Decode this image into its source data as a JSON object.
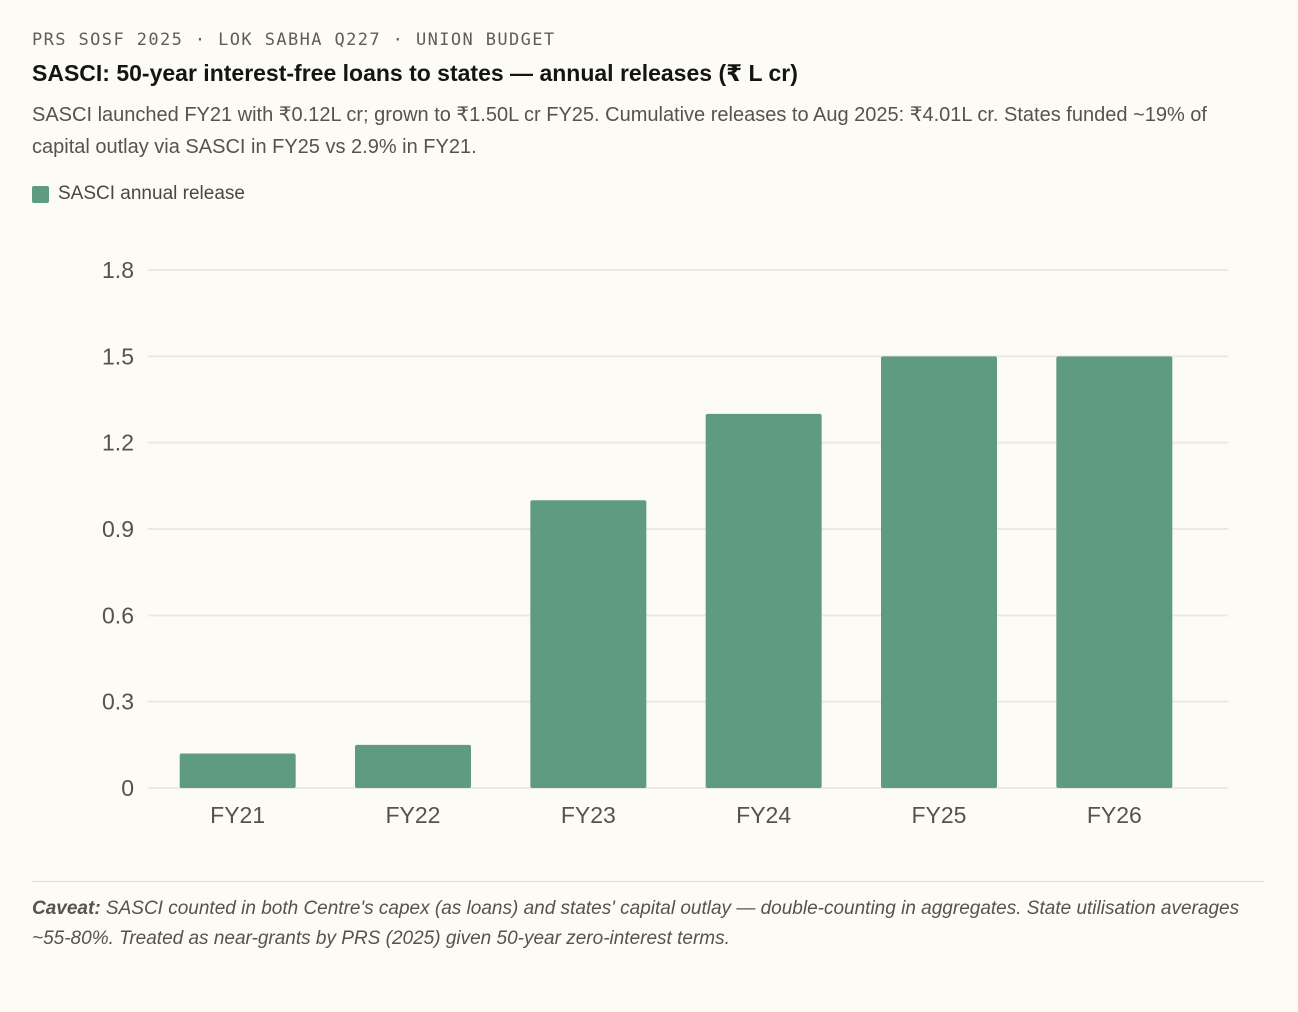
{
  "header": {
    "kicker": "PRS SOSF 2025 · LOK SABHA Q227 · UNION BUDGET",
    "title": "SASCI: 50-year interest-free loans to states — annual releases (₹ L cr)",
    "subtitle": "SASCI launched FY21 with ₹0.12L cr; grown to ₹1.50L cr FY25. Cumulative releases to Aug 2025: ₹4.01L cr. States funded ~19% of capital outlay via SASCI in FY25 vs 2.9% in FY21."
  },
  "legend": {
    "label": "SASCI annual release",
    "color": "#5f9b7e"
  },
  "chart_data": {
    "type": "bar",
    "categories": [
      "FY21",
      "FY22",
      "FY23",
      "FY24",
      "FY25",
      "FY26"
    ],
    "series": [
      {
        "name": "SASCI annual release",
        "values": [
          0.12,
          0.15,
          1.0,
          1.3,
          1.5,
          1.5
        ]
      }
    ],
    "ylim": [
      0,
      1.8
    ],
    "yticks": [
      0,
      0.3,
      0.6,
      0.9,
      1.2,
      1.5,
      1.8
    ],
    "ytick_labels": [
      "0",
      "0.3",
      "0.6",
      "0.9",
      "1.2",
      "1.5",
      "1.8"
    ],
    "xlabel": "",
    "ylabel": "",
    "grid": true,
    "legend_position": "top-left"
  },
  "caveat": {
    "label": "Caveat:",
    "text": " SASCI counted in both Centre's capex (as loans) and states' capital outlay — double-counting in aggregates. State utilisation averages ~55-80%. Treated as near-grants by PRS (2025) given 50-year zero-interest terms."
  },
  "colors": {
    "bar": "#5f9b7e",
    "grid": "#ebe9e2",
    "text": "#55534c"
  }
}
